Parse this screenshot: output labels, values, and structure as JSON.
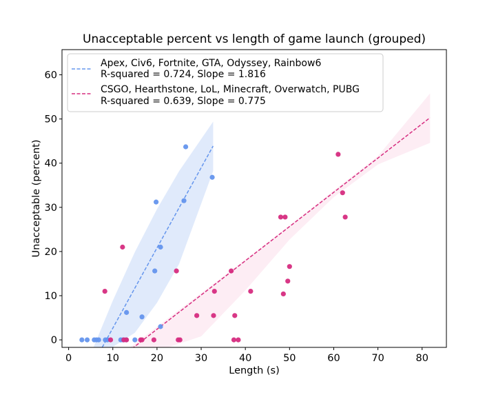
{
  "chart_data": {
    "type": "scatter",
    "title": "Unacceptable percent vs length of game launch (grouped)",
    "xlabel": "Length (s)",
    "ylabel": "Unacceptable (percent)",
    "xlim": [
      -1.5,
      85.5
    ],
    "ylim": [
      -1.7,
      65.7
    ],
    "xticks": [
      0,
      10,
      20,
      30,
      40,
      50,
      60,
      70,
      80
    ],
    "yticks": [
      0,
      10,
      20,
      30,
      40,
      50,
      60
    ],
    "grid": false,
    "legend_position": "top-left",
    "series": [
      {
        "name": "Apex, Civ6, Fortnite, GTA, Odyssey, Rainbow6",
        "stats": "R-squared = 0.724, Slope = 1.816",
        "color": "#6495ED",
        "band_color": "#6495ED",
        "points": [
          [
            3.0,
            0
          ],
          [
            4.2,
            0
          ],
          [
            5.8,
            0
          ],
          [
            6.3,
            0
          ],
          [
            6.8,
            0
          ],
          [
            8.3,
            0
          ],
          [
            8.8,
            0
          ],
          [
            11.8,
            0
          ],
          [
            12.3,
            0
          ],
          [
            13.0,
            0
          ],
          [
            15.0,
            0
          ],
          [
            13.1,
            6.2
          ],
          [
            16.6,
            5.2
          ],
          [
            19.5,
            15.6
          ],
          [
            19.8,
            31.2
          ],
          [
            20.8,
            21.0
          ],
          [
            20.8,
            3.0
          ],
          [
            26.1,
            31.5
          ],
          [
            26.5,
            43.7
          ],
          [
            32.5,
            36.8
          ]
        ],
        "fit": {
          "x_range": [
            7.6,
            32.7
          ],
          "intercept": -15.5,
          "slope": 1.816
        },
        "band": {
          "x": [
            5.5,
            10,
            15,
            20,
            25,
            32.7
          ],
          "lower": [
            -2,
            -1.6,
            1.6,
            8.4,
            17.2,
            38.2
          ],
          "upper": [
            -2,
            8.9,
            19.9,
            29.6,
            38.2,
            49.4
          ]
        }
      },
      {
        "name": "CSGO, Hearthstone, LoL, Minecraft, Overwatch, PUBG",
        "stats": "R-squared = 0.639, Slope = 0.775",
        "color": "#D62C7F",
        "band_color": "#F4A6C8",
        "points": [
          [
            8.2,
            11.0
          ],
          [
            9.5,
            0
          ],
          [
            12.2,
            21.0
          ],
          [
            12.5,
            0
          ],
          [
            13.1,
            0
          ],
          [
            16.3,
            0
          ],
          [
            16.6,
            0
          ],
          [
            19.3,
            0
          ],
          [
            24.4,
            15.6
          ],
          [
            24.8,
            0
          ],
          [
            25.2,
            0
          ],
          [
            29.0,
            5.5
          ],
          [
            32.8,
            5.5
          ],
          [
            33.0,
            11.0
          ],
          [
            36.8,
            15.6
          ],
          [
            37.4,
            0
          ],
          [
            37.6,
            5.5
          ],
          [
            38.4,
            0
          ],
          [
            41.2,
            11.0
          ],
          [
            48.0,
            27.8
          ],
          [
            48.6,
            10.4
          ],
          [
            49.0,
            27.8
          ],
          [
            49.6,
            13.3
          ],
          [
            50.0,
            16.6
          ],
          [
            61.0,
            42.0
          ],
          [
            62.0,
            33.3
          ],
          [
            62.6,
            27.8
          ]
        ],
        "fit": {
          "x_range": [
            14.3,
            81.8
          ],
          "intercept": -13.1,
          "slope": 0.775
        },
        "band": {
          "x": [
            13.5,
            21.6,
            30,
            40,
            50,
            60,
            70,
            81.8
          ],
          "lower": [
            -2,
            -2,
            0.8,
            11.2,
            22.7,
            32.3,
            39.7,
            44.6
          ],
          "upper": [
            -2,
            4.2,
            10.6,
            18.2,
            25.9,
            33.8,
            41.6,
            55.8
          ]
        }
      }
    ]
  }
}
